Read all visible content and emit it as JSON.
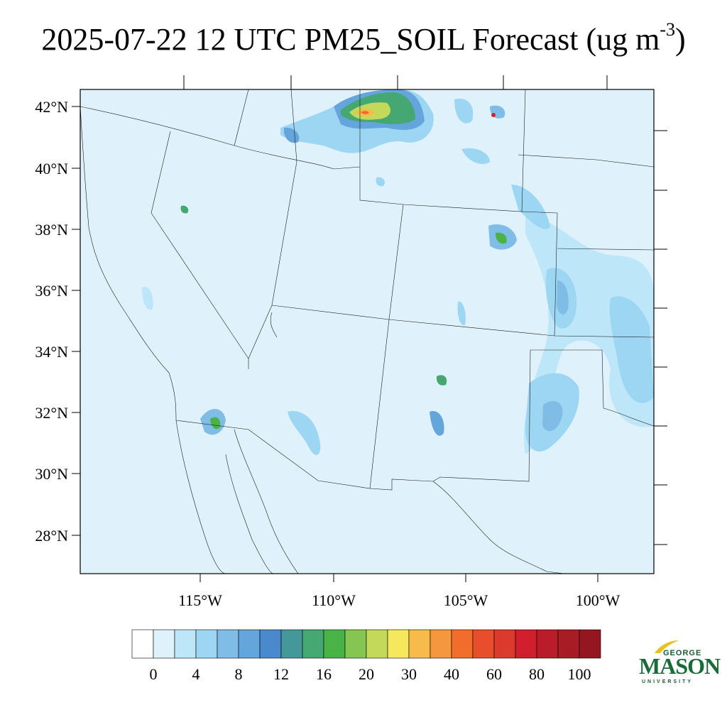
{
  "title": {
    "main": "2025-07-22 12 UTC PM25_SOIL Forecast (ug m",
    "sup": "-3",
    "close": ")"
  },
  "map": {
    "lon_range": [
      -119.5,
      -98.0
    ],
    "lat_range": [
      26.8,
      42.6
    ],
    "lat_labels": [
      "42°N",
      "40°N",
      "38°N",
      "36°N",
      "34°N",
      "32°N",
      "30°N",
      "28°N"
    ],
    "lon_labels": [
      "115°W",
      "110°W",
      "105°W",
      "100°W"
    ],
    "background_color": "#dff2fb"
  },
  "colorbar": {
    "colors": [
      "#ffffff",
      "#dff2fb",
      "#bde6f8",
      "#9dd6f3",
      "#7fbde6",
      "#64a5db",
      "#4a89cc",
      "#45989a",
      "#45a872",
      "#4ab347",
      "#85c653",
      "#c3d95a",
      "#f6e85c",
      "#f7bb4b",
      "#f5983d",
      "#f26c2c",
      "#e84d2c",
      "#dc3a2d",
      "#d11f2e",
      "#bb1c29",
      "#a81c25",
      "#931620"
    ],
    "labels": [
      "0",
      "4",
      "8",
      "12",
      "16",
      "20",
      "30",
      "40",
      "60",
      "80",
      "100"
    ]
  },
  "logo": {
    "top": "GEORGE",
    "main": "MASON",
    "bottom": "UNIVERSITY"
  }
}
